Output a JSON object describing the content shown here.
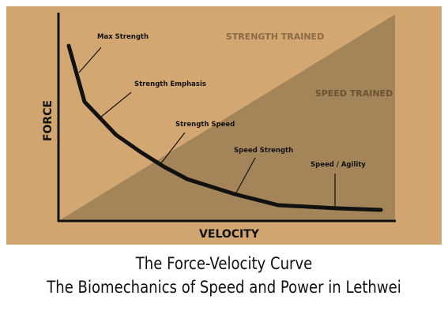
{
  "diagram": {
    "axis_labels": {
      "y": "FORCE",
      "x": "VELOCITY"
    },
    "region_labels": {
      "upper": "STRENGTH TRAINED",
      "lower": "SPEED TRAINED"
    },
    "annotations": [
      "Max Strength",
      "Strength Emphasis",
      "Strength Speed",
      "Speed Strength",
      "Speed / Agility"
    ],
    "colors": {
      "background": "#d0a56f",
      "upper_region": "#d3a772",
      "lower_region": "#a48559",
      "curve": "#111111",
      "region_text": "#8a6b45"
    }
  },
  "caption": {
    "line1": "The Force-Velocity Curve",
    "line2": "The Biomechanics of Speed and Power in Lethwei"
  }
}
